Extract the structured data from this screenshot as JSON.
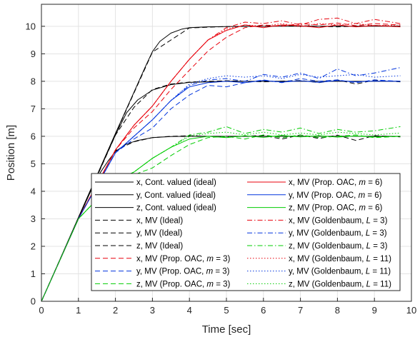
{
  "chart_data": {
    "type": "line",
    "xlabel": "Time [sec]",
    "ylabel": "Position [m]",
    "xlim": [
      0,
      10
    ],
    "ylim": [
      0,
      10.8
    ],
    "xticks": [
      0,
      1,
      2,
      3,
      4,
      5,
      6,
      7,
      8,
      9,
      10
    ],
    "yticks": [
      0,
      1,
      2,
      3,
      4,
      5,
      6,
      7,
      8,
      9,
      10
    ],
    "grid": true,
    "legend_position": "bottom-right",
    "legend_columns": 2,
    "series": [
      {
        "name": "x, Cont. valued (ideal)",
        "legend": [
          "x, Cont. valued (ideal)"
        ],
        "color": "#000000",
        "dash": "solid",
        "x": [
          0,
          0.5,
          1,
          1.5,
          2,
          2.5,
          2.8,
          3,
          3.2,
          3.5,
          3.8,
          4,
          4.5,
          5,
          6,
          7,
          8,
          9,
          9.7
        ],
        "y": [
          0,
          1.52,
          3.05,
          4.58,
          6.1,
          7.6,
          8.5,
          9.08,
          9.45,
          9.75,
          9.9,
          9.95,
          9.98,
          9.99,
          10,
          10,
          10,
          10,
          10
        ]
      },
      {
        "name": "y, Cont. valued (ideal)",
        "legend": [
          "y, Cont. valued (ideal)"
        ],
        "color": "#000000",
        "dash": "solid",
        "x": [
          0,
          0.5,
          1,
          1.5,
          2,
          2.3,
          2.6,
          3,
          3.5,
          4,
          5,
          6,
          7,
          8,
          9,
          9.7
        ],
        "y": [
          0,
          1.5,
          3.02,
          4.55,
          6.05,
          6.85,
          7.32,
          7.68,
          7.88,
          7.96,
          8,
          8,
          8,
          8,
          8,
          8
        ]
      },
      {
        "name": "z, Cont. valued (ideal)",
        "legend": [
          "z, Cont. valued (ideal)"
        ],
        "color": "#000000",
        "dash": "solid",
        "x": [
          0,
          0.5,
          1,
          1.5,
          1.8,
          2,
          2.3,
          2.6,
          3,
          3.5,
          4,
          5,
          6,
          7,
          8,
          9,
          9.7
        ],
        "y": [
          0,
          1.5,
          3.02,
          4.5,
          5.1,
          5.45,
          5.72,
          5.85,
          5.95,
          5.99,
          6,
          6,
          6,
          6,
          6,
          6,
          6
        ]
      },
      {
        "name": "x, MV (Ideal)",
        "legend": [
          "x, MV (Ideal)"
        ],
        "color": "#000000",
        "dash": "dashed",
        "x": [
          0,
          1,
          2,
          3,
          4,
          5,
          6,
          7,
          8,
          9,
          9.7
        ],
        "y": [
          0,
          3.04,
          6.08,
          9.06,
          9.94,
          9.99,
          10.01,
          10.02,
          9.98,
          10.03,
          10
        ]
      },
      {
        "name": "y, MV (Ideal)",
        "legend": [
          "y, MV (Ideal)"
        ],
        "color": "#000000",
        "dash": "dashed",
        "x": [
          0,
          1,
          2,
          2.5,
          3,
          3.5,
          4,
          5,
          6,
          7,
          7.5,
          8,
          8.5,
          9,
          9.7
        ],
        "y": [
          0,
          3.02,
          6.04,
          7.05,
          7.7,
          7.9,
          7.97,
          8.02,
          7.98,
          8.03,
          7.95,
          8.05,
          7.9,
          8.04,
          7.98
        ]
      },
      {
        "name": "z, MV (Ideal)",
        "legend": [
          "z, MV (Ideal)"
        ],
        "color": "#000000",
        "dash": "dashed",
        "x": [
          0,
          1,
          2,
          2.5,
          3,
          3.5,
          4,
          5,
          6,
          6.5,
          7,
          7.5,
          8,
          8.5,
          9,
          9.7
        ],
        "y": [
          0,
          3.02,
          5.48,
          5.8,
          5.95,
          6.0,
          6.02,
          5.97,
          6.03,
          5.9,
          6.05,
          5.92,
          6.04,
          5.85,
          6.02,
          5.98
        ]
      },
      {
        "name": "x, MV (Prop. OAC, m = 3)",
        "legend": [
          "x, MV (Prop. OAC, ",
          "m",
          " = 3)"
        ],
        "color": "#e8000b",
        "dash": "dashed",
        "x": [
          0,
          1,
          2,
          2.5,
          3,
          3.5,
          4,
          4.5,
          5,
          5.5,
          6,
          6.5,
          7,
          7.5,
          8,
          8.5,
          9,
          9.7
        ],
        "y": [
          0,
          3.0,
          5.5,
          6.3,
          6.9,
          7.7,
          8.4,
          9.1,
          9.6,
          9.95,
          10.05,
          10.0,
          10.1,
          10.05,
          10.12,
          10.02,
          10.1,
          10.05
        ]
      },
      {
        "name": "y, MV (Prop. OAC, m = 3)",
        "legend": [
          "y, MV (Prop. OAC, ",
          "m",
          " = 3)"
        ],
        "color": "#0033dd",
        "dash": "dashed",
        "x": [
          0,
          1,
          2,
          2.5,
          3,
          3.5,
          4,
          4.5,
          5,
          5.5,
          6,
          6.5,
          7,
          7.5,
          8,
          8.5,
          9,
          9.7
        ],
        "y": [
          0,
          3.0,
          5.4,
          5.9,
          6.3,
          7.0,
          7.5,
          7.85,
          7.8,
          7.95,
          8.05,
          7.95,
          8.1,
          8.0,
          8.05,
          7.95,
          8.05,
          8.0
        ]
      },
      {
        "name": "z, MV (Prop. OAC, m = 3)",
        "legend": [
          "z, MV (Prop. OAC, ",
          "m",
          " = 3)"
        ],
        "color": "#00cc00",
        "dash": "dashed",
        "x": [
          0,
          1,
          2,
          2.5,
          3,
          3.5,
          4,
          4.5,
          5,
          5.5,
          6,
          6.5,
          7,
          7.5,
          8,
          8.5,
          9,
          9.7
        ],
        "y": [
          0,
          3.0,
          4.4,
          4.6,
          4.85,
          5.3,
          5.7,
          5.95,
          6.0,
          5.9,
          6.05,
          5.95,
          6.05,
          5.95,
          6.0,
          6.05,
          5.95,
          6.0
        ]
      },
      {
        "name": "x, MV (Prop. OAC, m = 6)",
        "legend": [
          "x, MV (Prop. OAC, ",
          "m",
          " = 6)"
        ],
        "color": "#e8000b",
        "dash": "solid",
        "x": [
          0,
          1,
          2,
          2.5,
          3,
          3.5,
          4,
          4.5,
          5,
          5.5,
          6,
          6.5,
          7,
          7.5,
          8,
          8.5,
          9,
          9.7
        ],
        "y": [
          0,
          3.0,
          5.5,
          6.4,
          7.1,
          8.0,
          8.8,
          9.5,
          9.85,
          10.05,
          9.95,
          10.05,
          10.02,
          9.95,
          10.05,
          9.98,
          10.03,
          9.98
        ]
      },
      {
        "name": "y, MV (Prop. OAC, m = 6)",
        "legend": [
          "y, MV (Prop. OAC, ",
          "m",
          " = 6)"
        ],
        "color": "#0033dd",
        "dash": "solid",
        "x": [
          0,
          1,
          2,
          2.5,
          3,
          3.5,
          4,
          4.5,
          5,
          5.5,
          6,
          6.5,
          7,
          7.5,
          8,
          8.5,
          9,
          9.7
        ],
        "y": [
          0,
          3.0,
          5.4,
          6.0,
          6.6,
          7.3,
          7.8,
          7.95,
          8.0,
          7.95,
          8.03,
          7.97,
          8.02,
          7.96,
          8.03,
          7.98,
          8.01,
          8.0
        ]
      },
      {
        "name": "z, MV (Prop. OAC, m = 6)",
        "legend": [
          "z, MV (Prop. OAC, ",
          "m",
          " = 6)"
        ],
        "color": "#00cc00",
        "dash": "solid",
        "x": [
          0,
          1,
          2,
          2.5,
          3,
          3.5,
          4,
          4.5,
          5,
          5.5,
          6,
          6.5,
          7,
          7.5,
          8,
          8.5,
          9,
          9.7
        ],
        "y": [
          0,
          3.0,
          4.4,
          4.7,
          5.2,
          5.6,
          5.9,
          6.0,
          5.95,
          6.02,
          5.96,
          6.03,
          5.98,
          6.02,
          5.97,
          6.01,
          5.98,
          6.0
        ]
      },
      {
        "name": "x, MV (Goldenbaum, L = 3)",
        "legend": [
          "x, MV (Goldenbaum, ",
          "L",
          " = 3)"
        ],
        "color": "#e8000b",
        "dash": "dashdot",
        "x": [
          0,
          1,
          2,
          2.5,
          3,
          3.5,
          4,
          4.5,
          5,
          5.5,
          6,
          6.5,
          7,
          7.5,
          8,
          8.5,
          9,
          9.7
        ],
        "y": [
          0,
          3.0,
          5.5,
          6.4,
          7.1,
          8.0,
          8.8,
          9.5,
          9.95,
          10.15,
          10.1,
          10.2,
          10.05,
          10.25,
          10.3,
          10.1,
          10.25,
          10.1
        ]
      },
      {
        "name": "y, MV (Goldenbaum, L = 3)",
        "legend": [
          "y, MV (Goldenbaum, ",
          "L",
          " = 3)"
        ],
        "color": "#0033dd",
        "dash": "dashdot",
        "x": [
          0,
          1,
          2,
          2.5,
          3,
          3.5,
          4,
          4.5,
          5,
          5.5,
          6,
          6.5,
          7,
          7.5,
          8,
          8.5,
          9,
          9.7
        ],
        "y": [
          0,
          3.0,
          5.4,
          6.0,
          6.6,
          7.3,
          7.85,
          8.05,
          8.1,
          8.0,
          8.25,
          8.15,
          8.3,
          8.1,
          8.45,
          8.2,
          8.3,
          8.5
        ]
      },
      {
        "name": "z, MV (Goldenbaum, L = 3)",
        "legend": [
          "z, MV (Goldenbaum, ",
          "L",
          " = 3)"
        ],
        "color": "#00cc00",
        "dash": "dashdot",
        "x": [
          0,
          1,
          2,
          2.5,
          3,
          3.5,
          4,
          4.5,
          5,
          5.5,
          6,
          6.5,
          7,
          7.5,
          8,
          8.5,
          9,
          9.7
        ],
        "y": [
          0,
          3.0,
          4.4,
          4.7,
          5.2,
          5.6,
          6.05,
          6.15,
          6.35,
          6.1,
          6.25,
          6.15,
          6.3,
          6.1,
          6.25,
          6.15,
          6.2,
          6.35
        ]
      },
      {
        "name": "x, MV (Goldenbaum, L = 11)",
        "legend": [
          "x, MV (Goldenbaum, ",
          "L",
          " = 11)"
        ],
        "color": "#e8000b",
        "dash": "dotted",
        "x": [
          0,
          1,
          2,
          2.5,
          3,
          3.5,
          4,
          4.5,
          5,
          5.5,
          6,
          6.5,
          7,
          7.5,
          8,
          8.5,
          9,
          9.7
        ],
        "y": [
          0,
          3.0,
          5.5,
          6.4,
          7.1,
          8.0,
          8.8,
          9.5,
          9.9,
          10.05,
          10.0,
          10.1,
          9.98,
          10.1,
          10.05,
          10.1,
          10.02,
          10.05
        ]
      },
      {
        "name": "y, MV (Goldenbaum, L = 11)",
        "legend": [
          "y, MV (Goldenbaum, ",
          "L",
          " = 11)"
        ],
        "color": "#0033dd",
        "dash": "dotted",
        "x": [
          0,
          1,
          2,
          2.5,
          3,
          3.5,
          4,
          4.5,
          5,
          5.5,
          6,
          6.5,
          7,
          7.5,
          8,
          8.5,
          9,
          9.7
        ],
        "y": [
          0,
          3.0,
          5.4,
          6.0,
          6.6,
          7.3,
          7.9,
          8.1,
          8.2,
          8.15,
          8.2,
          8.1,
          8.25,
          8.15,
          8.2,
          8.25,
          8.15,
          8.2
        ]
      },
      {
        "name": "z, MV (Goldenbaum, L = 11)",
        "legend": [
          "z, MV (Goldenbaum, ",
          "L",
          " = 11)"
        ],
        "color": "#00cc00",
        "dash": "dotted",
        "x": [
          0,
          1,
          2,
          2.5,
          3,
          3.5,
          4,
          4.5,
          5,
          5.5,
          6,
          6.5,
          7,
          7.5,
          8,
          8.5,
          9,
          9.7
        ],
        "y": [
          0,
          3.0,
          4.4,
          4.7,
          5.2,
          5.6,
          6.0,
          6.1,
          6.15,
          6.05,
          6.15,
          6.05,
          6.12,
          6.05,
          6.15,
          6.1,
          6.05,
          6.12
        ]
      }
    ]
  }
}
